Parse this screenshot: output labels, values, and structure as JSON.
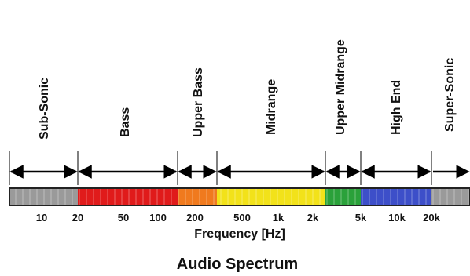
{
  "title": "Audio Spectrum",
  "axis_title": "Frequency [Hz]",
  "tick_labels": [
    "10",
    "20",
    "50",
    "100",
    "200",
    "500",
    "1k",
    "2k",
    "5k",
    "10k",
    "20k"
  ],
  "bands": [
    {
      "name": "Sub-Sonic",
      "color": "#9a9a9a"
    },
    {
      "name": "Bass",
      "color": "#e01b1b"
    },
    {
      "name": "Upper Bass",
      "color": "#f07a1e"
    },
    {
      "name": "Midrange",
      "color": "#f2e21a"
    },
    {
      "name": "Upper Midrange",
      "color": "#2aa13a"
    },
    {
      "name": "High End",
      "color": "#3d4fc9"
    },
    {
      "name": "Super-Sonic",
      "color": "#9a9a9a"
    }
  ],
  "colors": {
    "bar_border": "#222222",
    "arrow": "#000000",
    "text": "#111111"
  }
}
